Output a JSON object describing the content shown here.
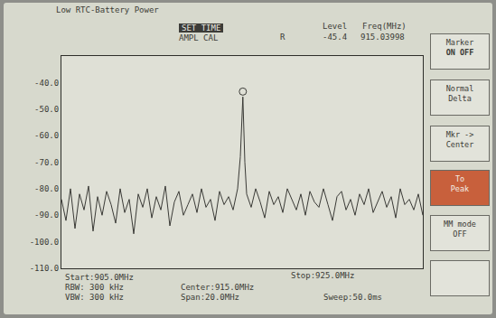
{
  "header": {
    "status": "Low RTC-Battery Power",
    "menu_active": "SET TIME",
    "menu_next": "AMPL CAL",
    "flag": "R",
    "level_label": "Level",
    "freq_label": "Freq(MHz)"
  },
  "softkeys": [
    [
      "Marker",
      "ON OFF"
    ],
    [
      "Normal",
      "Delta"
    ],
    [
      "Mkr ->",
      "Center"
    ],
    [
      "To",
      "Peak"
    ],
    [
      "MM mode",
      "OFF"
    ],
    []
  ],
  "footer": {
    "start": "Start:905.0MHz",
    "rbw": "RBW: 300 kHz",
    "vbw": "VBW: 300 kHz",
    "center": "Center:915.0MHz",
    "span": "Span:20.0MHz",
    "stop": "Stop:925.0MHz",
    "sweep": "Sweep:50.0ms"
  },
  "chart_data": {
    "type": "line",
    "color": "#3a3a36",
    "grid": false,
    "tick_labels": "y",
    "xlim": [
      905,
      925
    ],
    "ylim": [
      -110,
      -30
    ],
    "yticks": [
      {
        "value": -40,
        "label": "-40.0"
      },
      {
        "value": -50,
        "label": "-50.0"
      },
      {
        "value": -60,
        "label": "-60.0"
      },
      {
        "value": -70,
        "label": "-70.0"
      },
      {
        "value": -80,
        "label": "-80.0"
      },
      {
        "value": -90,
        "label": "-90.0"
      },
      {
        "value": -100,
        "label": "-100.0"
      },
      {
        "value": -110,
        "label": "-110.0"
      }
    ],
    "marker_point": {
      "x": 915.03998,
      "y": -45.4,
      "marker": "circle-open"
    },
    "x": [
      905.0,
      905.25,
      905.5,
      905.75,
      906.0,
      906.25,
      906.5,
      906.75,
      907.0,
      907.25,
      907.5,
      907.75,
      908.0,
      908.25,
      908.5,
      908.75,
      909.0,
      909.25,
      909.5,
      909.75,
      910.0,
      910.25,
      910.5,
      910.75,
      911.0,
      911.25,
      911.5,
      911.75,
      912.0,
      912.25,
      912.5,
      912.75,
      913.0,
      913.25,
      913.5,
      913.75,
      914.0,
      914.25,
      914.5,
      914.75,
      914.9,
      915.04,
      915.15,
      915.25,
      915.5,
      915.75,
      916.0,
      916.25,
      916.5,
      916.75,
      917.0,
      917.25,
      917.5,
      917.75,
      918.0,
      918.25,
      918.5,
      918.75,
      919.0,
      919.25,
      919.5,
      919.75,
      920.0,
      920.25,
      920.5,
      920.75,
      921.0,
      921.25,
      921.5,
      921.75,
      922.0,
      922.25,
      922.5,
      922.75,
      923.0,
      923.25,
      923.5,
      923.75,
      924.0,
      924.25,
      924.5,
      924.75,
      925.0
    ],
    "values": [
      -84,
      -92,
      -80,
      -95,
      -82,
      -88,
      -79,
      -96,
      -83,
      -90,
      -81,
      -86,
      -93,
      -80,
      -89,
      -84,
      -97,
      -82,
      -87,
      -80,
      -91,
      -83,
      -88,
      -79,
      -94,
      -85,
      -81,
      -90,
      -86,
      -82,
      -89,
      -80,
      -87,
      -84,
      -92,
      -81,
      -86,
      -83,
      -88,
      -80,
      -68,
      -45.4,
      -70,
      -82,
      -87,
      -80,
      -85,
      -91,
      -81,
      -86,
      -83,
      -89,
      -80,
      -84,
      -88,
      -82,
      -90,
      -81,
      -85,
      -87,
      -80,
      -86,
      -92,
      -83,
      -81,
      -88,
      -84,
      -90,
      -82,
      -86,
      -80,
      -89,
      -85,
      -81,
      -87,
      -83,
      -91,
      -80,
      -86,
      -84,
      -88,
      -82,
      -90
    ]
  }
}
